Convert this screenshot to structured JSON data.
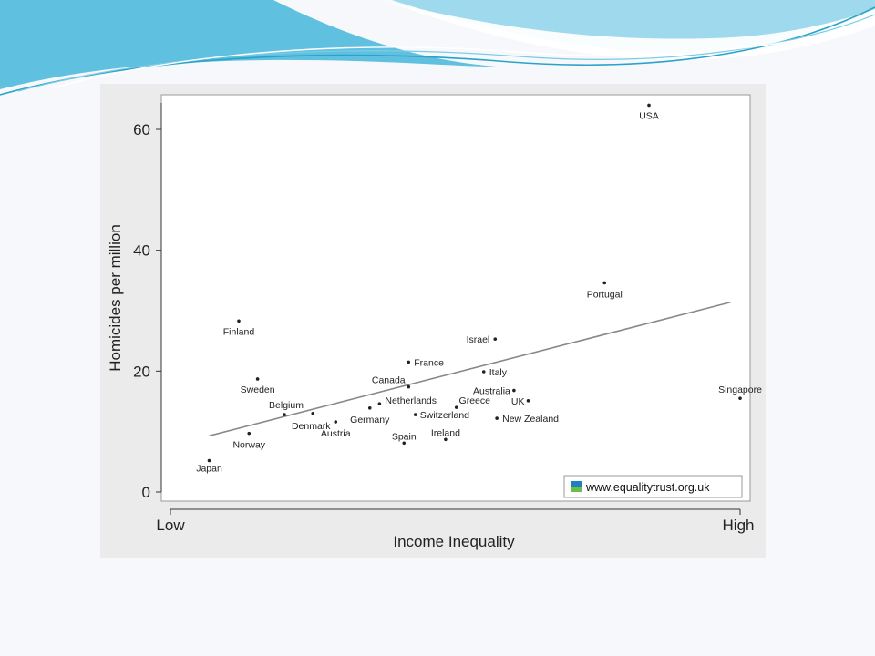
{
  "slide": {
    "background": "#f7f8fb",
    "wave_colors": [
      "#8fd3ea",
      "#4fb9dc",
      "#2aa3c8",
      "#ffffff"
    ]
  },
  "chart_data": {
    "type": "scatter",
    "title": "",
    "xlabel": "Income Inequality",
    "ylabel": "Homicides per million",
    "x_tick_labels": {
      "low": "Low",
      "high": "High"
    },
    "xlim": [
      0,
      1
    ],
    "ylim": [
      0,
      65
    ],
    "y_ticks": [
      0,
      20,
      40,
      60
    ],
    "grid": false,
    "plot_background": "#ffffff",
    "frame_color": "#999999",
    "point_color": "#222222",
    "trend_color": "#888888",
    "trend_line": {
      "x": [
        0.068,
        0.983
      ],
      "y": [
        9.3,
        31.4
      ]
    },
    "points": [
      {
        "label": "Japan",
        "x": 0.068,
        "y": 5.2
      },
      {
        "label": "Finland",
        "x": 0.12,
        "y": 28.3
      },
      {
        "label": "Sweden",
        "x": 0.153,
        "y": 18.7
      },
      {
        "label": "Norway",
        "x": 0.138,
        "y": 9.7
      },
      {
        "label": "Belgium",
        "x": 0.2,
        "y": 12.8
      },
      {
        "label": "Denmark",
        "x": 0.25,
        "y": 13
      },
      {
        "label": "Austria",
        "x": 0.29,
        "y": 11.6
      },
      {
        "label": "Germany",
        "x": 0.35,
        "y": 13.9
      },
      {
        "label": "Netherlands",
        "x": 0.367,
        "y": 14.6
      },
      {
        "label": "Canada",
        "x": 0.418,
        "y": 17.4
      },
      {
        "label": "France",
        "x": 0.418,
        "y": 21.5
      },
      {
        "label": "Spain",
        "x": 0.41,
        "y": 8.1
      },
      {
        "label": "Switzerland",
        "x": 0.43,
        "y": 12.8
      },
      {
        "label": "Ireland",
        "x": 0.483,
        "y": 8.7
      },
      {
        "label": "Greece",
        "x": 0.502,
        "y": 14
      },
      {
        "label": "Italy",
        "x": 0.55,
        "y": 19.9
      },
      {
        "label": "Israel",
        "x": 0.57,
        "y": 25.3
      },
      {
        "label": "Australia",
        "x": 0.603,
        "y": 16.8
      },
      {
        "label": "UK",
        "x": 0.628,
        "y": 15.1
      },
      {
        "label": "New Zealand",
        "x": 0.573,
        "y": 12.2
      },
      {
        "label": "Portugal",
        "x": 0.762,
        "y": 34.6
      },
      {
        "label": "USA",
        "x": 0.84,
        "y": 64
      },
      {
        "label": "Singapore",
        "x": 1.0,
        "y": 15.5
      }
    ]
  },
  "credit": {
    "text": "www.equalitytrust.org.uk",
    "logo_colors": [
      "#1f7fc1",
      "#6cbe45"
    ]
  }
}
